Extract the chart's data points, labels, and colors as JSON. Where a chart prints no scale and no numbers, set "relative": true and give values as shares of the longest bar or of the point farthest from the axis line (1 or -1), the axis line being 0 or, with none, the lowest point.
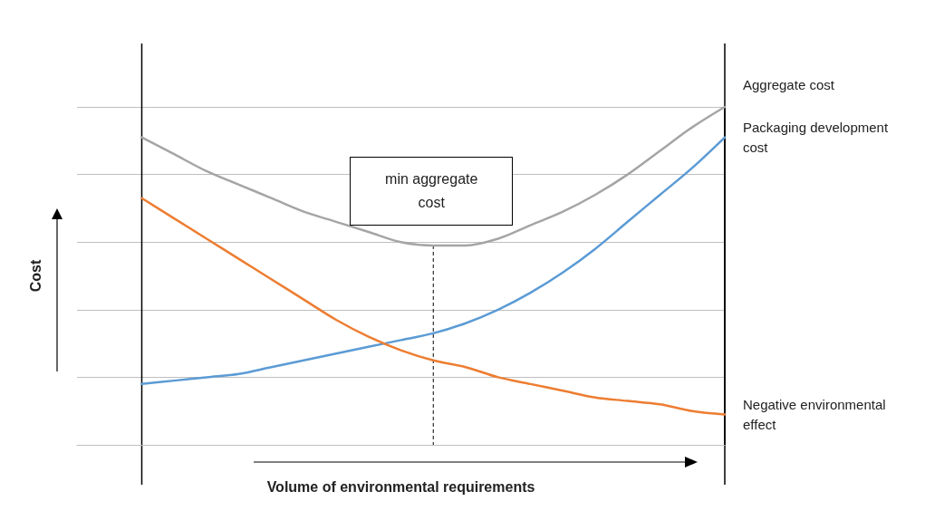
{
  "chart_data": {
    "type": "line",
    "relative": true,
    "xlabel": "Volume of environmental requirements",
    "ylabel": "Cost",
    "grid": "y",
    "legend": false,
    "marker": "none",
    "line_style": "solid",
    "categories": [
      null,
      null,
      null,
      null,
      null,
      null,
      null,
      null,
      null,
      null,
      null,
      null,
      null,
      null,
      null,
      null,
      null,
      null,
      null,
      null,
      null
    ],
    "series": [
      {
        "name": "Aggregate cost",
        "color": "#a5a5a5",
        "values": [
          null,
          null,
          0.91,
          0.86,
          0.81,
          0.77,
          0.73,
          0.69,
          0.66,
          0.63,
          0.6,
          0.59,
          0.59,
          0.61,
          0.65,
          0.69,
          0.74,
          0.8,
          0.87,
          0.94,
          1
        ]
      },
      {
        "name": "Packaging development cost",
        "color": "#5b9bd5",
        "values": [
          null,
          null,
          0.18,
          0.19,
          0.2,
          0.21,
          0.23,
          0.25,
          0.27,
          0.29,
          0.31,
          0.33,
          0.36,
          0.4,
          0.45,
          0.51,
          0.58,
          0.66,
          0.74,
          0.82,
          0.91
        ]
      },
      {
        "name": "Negative environmental effect",
        "color": "#ed7d31",
        "values": [
          null,
          null,
          0.73,
          0.67,
          0.61,
          0.55,
          0.49,
          0.43,
          0.37,
          0.32,
          0.28,
          0.25,
          0.23,
          0.2,
          0.18,
          0.16,
          0.14,
          0.13,
          0.12,
          0.1,
          0.09
        ]
      }
    ],
    "annotations": [
      "min aggregate cost"
    ]
  }
}
